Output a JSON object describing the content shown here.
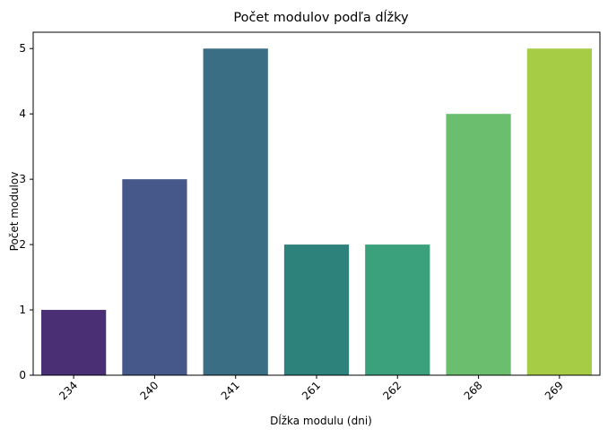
{
  "chart_data": {
    "type": "bar",
    "title": "Počet modulov podľa dĺžky",
    "xlabel": "Dĺžka modulu (dni)",
    "ylabel": "Počet modulov",
    "categories": [
      "234",
      "240",
      "241",
      "261",
      "262",
      "268",
      "269"
    ],
    "values": [
      1,
      3,
      5,
      2,
      2,
      4,
      5
    ],
    "colors": [
      "#4a2f75",
      "#46588a",
      "#3a6e84",
      "#2d837b",
      "#3aa17c",
      "#6abe6e",
      "#a6cc45"
    ],
    "ylim": [
      0,
      5.25
    ],
    "yticks": [
      0,
      1,
      2,
      3,
      4,
      5
    ],
    "grid": false,
    "x_tick_rotation": -45
  }
}
